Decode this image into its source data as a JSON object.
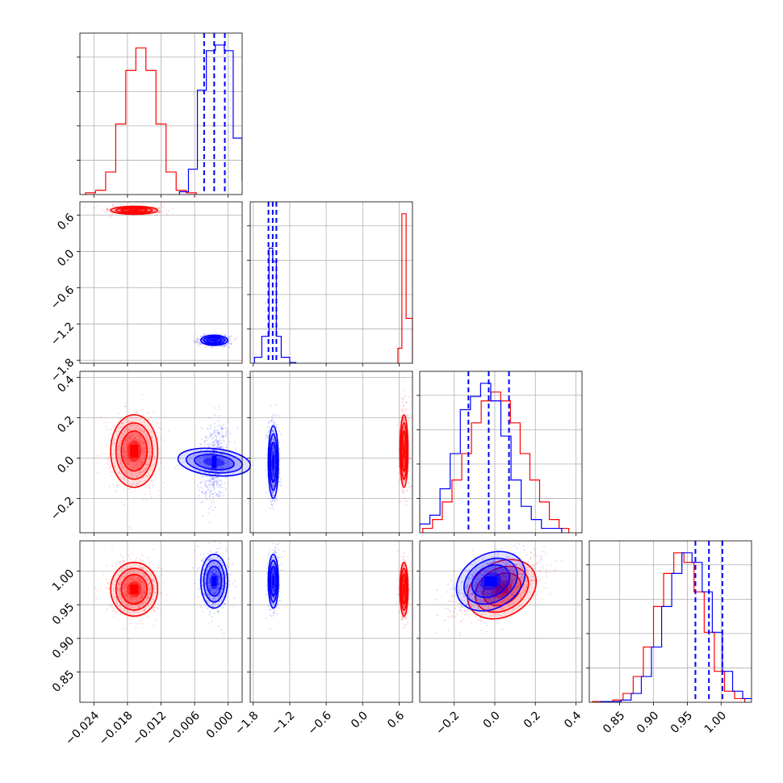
{
  "chart_data": {
    "type": "corner",
    "grid": true,
    "parameters": [
      {
        "index": 0,
        "range": [
          -0.0265,
          0.0025
        ],
        "ticks": [
          "−0.024",
          "−0.018",
          "−0.012",
          "−0.006",
          "0.000"
        ],
        "tick_values": [
          -0.024,
          -0.018,
          -0.012,
          -0.006,
          0.0
        ]
      },
      {
        "index": 1,
        "range": [
          -1.85,
          0.82
        ],
        "ticks": [
          "−1.8",
          "−1.2",
          "−0.6",
          "0.0",
          "0.6"
        ],
        "tick_values": [
          -1.8,
          -1.2,
          -0.6,
          0.0,
          0.6
        ]
      },
      {
        "index": 2,
        "range": [
          -0.37,
          0.43
        ],
        "ticks": [
          "−0.2",
          "0.0",
          "0.2",
          "0.4"
        ],
        "tick_values": [
          -0.2,
          0.0,
          0.2,
          0.4
        ]
      },
      {
        "index": 3,
        "range": [
          0.805,
          1.045
        ],
        "ticks": [
          "0.85",
          "0.90",
          "0.95",
          "1.00"
        ],
        "tick_values": [
          0.85,
          0.9,
          0.95,
          1.0
        ]
      }
    ],
    "series": [
      {
        "color": "#ff0000",
        "mean": [
          -0.0168,
          0.68,
          0.035,
          0.973
        ],
        "sigma": [
          0.0021,
          0.033,
          0.09,
          0.02
        ],
        "corr23": 0.55,
        "hist": [
          [
            0.6,
            1.5,
            8,
            25,
            44,
            52,
            44,
            25,
            8,
            1.5,
            0.6
          ],
          [
            10,
            100,
            30
          ],
          [
            0.5,
            1.5,
            3.5,
            6,
            9,
            12.5,
            15,
            16,
            15,
            12.5,
            9,
            6,
            3.5,
            1.5,
            0.5
          ],
          [
            0.1,
            0.1,
            0.3,
            1.2,
            3.5,
            7.5,
            13,
            17.5,
            20.3,
            19,
            15,
            9.5,
            4.2,
            1.5,
            0.5
          ]
        ],
        "hist_edges": [
          [
            -0.0255,
            -0.0237,
            -0.0219,
            -0.0201,
            -0.0183,
            -0.0165,
            -0.0147,
            -0.0129,
            -0.0111,
            -0.0093,
            -0.0075,
            -0.0057
          ],
          [
            0.58,
            0.645,
            0.715,
            0.82
          ],
          [
            -0.355,
            -0.307,
            -0.259,
            -0.211,
            -0.163,
            -0.115,
            -0.067,
            -0.019,
            0.029,
            0.077,
            0.125,
            0.173,
            0.221,
            0.269,
            0.317,
            0.365
          ],
          [
            0.81,
            0.825,
            0.84,
            0.855,
            0.87,
            0.885,
            0.9,
            0.915,
            0.93,
            0.945,
            0.96,
            0.975,
            0.99,
            1.005,
            1.02,
            1.035
          ]
        ]
      },
      {
        "color": "#0000ff",
        "mean": [
          -0.0025,
          -1.47,
          -0.02,
          0.985
        ],
        "sigma": [
          0.0012,
          0.042,
          0.09,
          0.02
        ],
        "corr23": 0.55,
        "hist": [
          [
            1,
            9,
            37,
            51,
            53,
            51,
            20,
            5,
            1
          ],
          [
            4,
            18,
            77,
            68,
            18,
            4,
            0.5
          ],
          [
            0.5,
            1,
            2,
            5,
            9,
            14,
            15.5,
            17,
            15,
            11,
            6,
            3,
            1.5,
            0.5,
            0.5
          ],
          [
            0.1,
            0.1,
            0.3,
            1.2,
            3.5,
            7.5,
            13,
            17.5,
            20.3,
            19,
            15,
            9.5,
            4.2,
            1.5,
            0.5
          ]
        ],
        "hist_edges": [
          [
            -0.0087,
            -0.0071,
            -0.0055,
            -0.0039,
            -0.0023,
            -0.0007,
            0.0009,
            0.0025,
            0.0041,
            0.0057
          ],
          [
            -1.78,
            -1.66,
            -1.54,
            -1.48,
            -1.42,
            -1.34,
            -1.2,
            -1.1
          ],
          [
            -0.42,
            -0.37,
            -0.32,
            -0.27,
            -0.22,
            -0.17,
            -0.12,
            -0.07,
            -0.02,
            0.03,
            0.08,
            0.13,
            0.18,
            0.23,
            0.28,
            0.33
          ],
          [
            0.822,
            0.837,
            0.852,
            0.867,
            0.882,
            0.897,
            0.912,
            0.927,
            0.942,
            0.957,
            0.972,
            0.987,
            1.002,
            1.017,
            1.032,
            1.047
          ]
        ],
        "quantiles": [
          [
            -0.0043,
            -0.0025,
            -0.0006
          ],
          [
            -1.55,
            -1.48,
            -1.42
          ],
          [
            -0.13,
            -0.03,
            0.07
          ],
          [
            0.962,
            0.982,
            1.002
          ]
        ]
      }
    ]
  }
}
